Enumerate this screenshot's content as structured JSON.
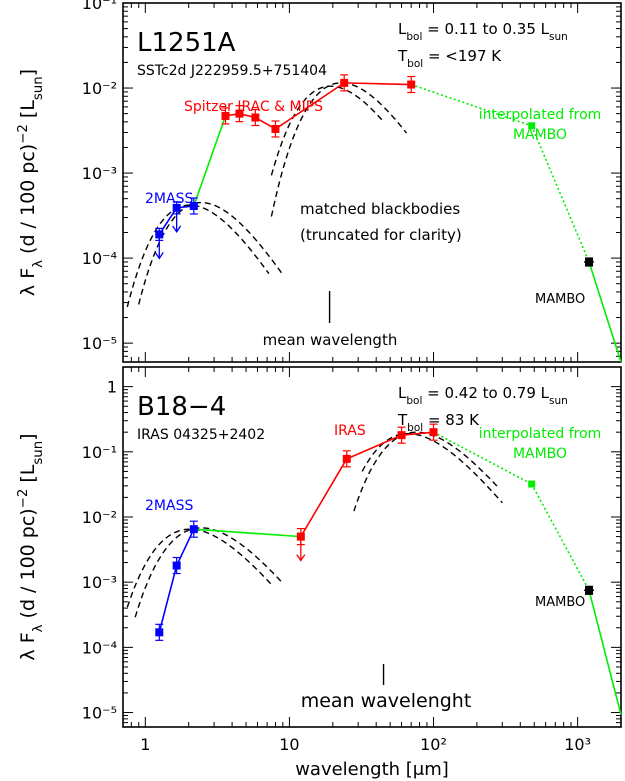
{
  "figure": {
    "xlabel": "wavelength [μm]",
    "x_tick_labels": [
      "1",
      "10",
      "10²",
      "10³"
    ],
    "xlim": [
      0.7,
      2000
    ],
    "xscale": "log"
  },
  "chart_data": [
    {
      "type": "scatter",
      "panel": "top",
      "title": "L1251A",
      "subtitle": "SSTc2d J222959.5+751404",
      "lbol": "L_bol = 0.11 to 0.35 L_sun",
      "tbol": "T_bol = <197 K",
      "ylabel": "λ F_λ (d / 100 pc)^-2 [L_sun]",
      "yscale": "log",
      "ylim": [
        6e-06,
        0.1
      ],
      "y_tick_labels": [
        "10⁻⁵",
        "10⁻⁴",
        "10⁻³",
        "10⁻²",
        "10⁻¹"
      ],
      "series": [
        {
          "name": "2MASS",
          "color": "#0000ff",
          "x": [
            1.25,
            1.65,
            2.17
          ],
          "y": [
            0.00019,
            0.00039,
            0.00041
          ],
          "upper_limits": [
            true,
            true,
            false
          ]
        },
        {
          "name": "Spitzer IRAC & MIPS",
          "color": "#ff0000",
          "x": [
            3.6,
            4.5,
            5.8,
            8.0,
            24,
            70
          ],
          "y": [
            0.0047,
            0.005,
            0.0045,
            0.0033,
            0.0115,
            0.011
          ]
        },
        {
          "name": "interpolated from MAMBO",
          "color": "#00ee00",
          "x": [
            480
          ],
          "y": [
            0.0036
          ]
        },
        {
          "name": "MAMBO",
          "color": "#000000",
          "x": [
            1200
          ],
          "y": [
            9e-05
          ]
        }
      ],
      "annotations": {
        "blackbodies": "matched blackbodies",
        "truncated": "(truncated for clarity)",
        "mean_wavelength": "mean wavelength",
        "mean_wavelength_x": 19
      }
    },
    {
      "type": "scatter",
      "panel": "bottom",
      "title": "B18−4",
      "subtitle": "IRAS 04325+2402",
      "lbol": "L_bol = 0.42 to 0.79 L_sun",
      "tbol": "T_bol = 83 K",
      "ylabel": "λ F_λ (d / 100 pc)^-2 [L_sun]",
      "yscale": "log",
      "ylim": [
        6e-06,
        2
      ],
      "y_tick_labels": [
        "10⁻⁵",
        "10⁻⁴",
        "10⁻³",
        "10⁻²",
        "10⁻¹",
        "1"
      ],
      "series": [
        {
          "name": "2MASS",
          "color": "#0000ff",
          "x": [
            1.25,
            1.65,
            2.17
          ],
          "y": [
            0.00017,
            0.0018,
            0.0065
          ]
        },
        {
          "name": "IRAS",
          "color": "#ff0000",
          "x": [
            12,
            25,
            60,
            100
          ],
          "y": [
            0.005,
            0.078,
            0.18,
            0.2
          ],
          "upper_limits": [
            true,
            false,
            false,
            false
          ]
        },
        {
          "name": "interpolated from MAMBO",
          "color": "#00ee00",
          "x": [
            480
          ],
          "y": [
            0.032
          ]
        },
        {
          "name": "MAMBO",
          "color": "#000000",
          "x": [
            1200
          ],
          "y": [
            0.00075
          ]
        }
      ],
      "annotations": {
        "mean_wavelength": "mean wavelenght",
        "mean_wavelength_x": 45
      }
    }
  ]
}
